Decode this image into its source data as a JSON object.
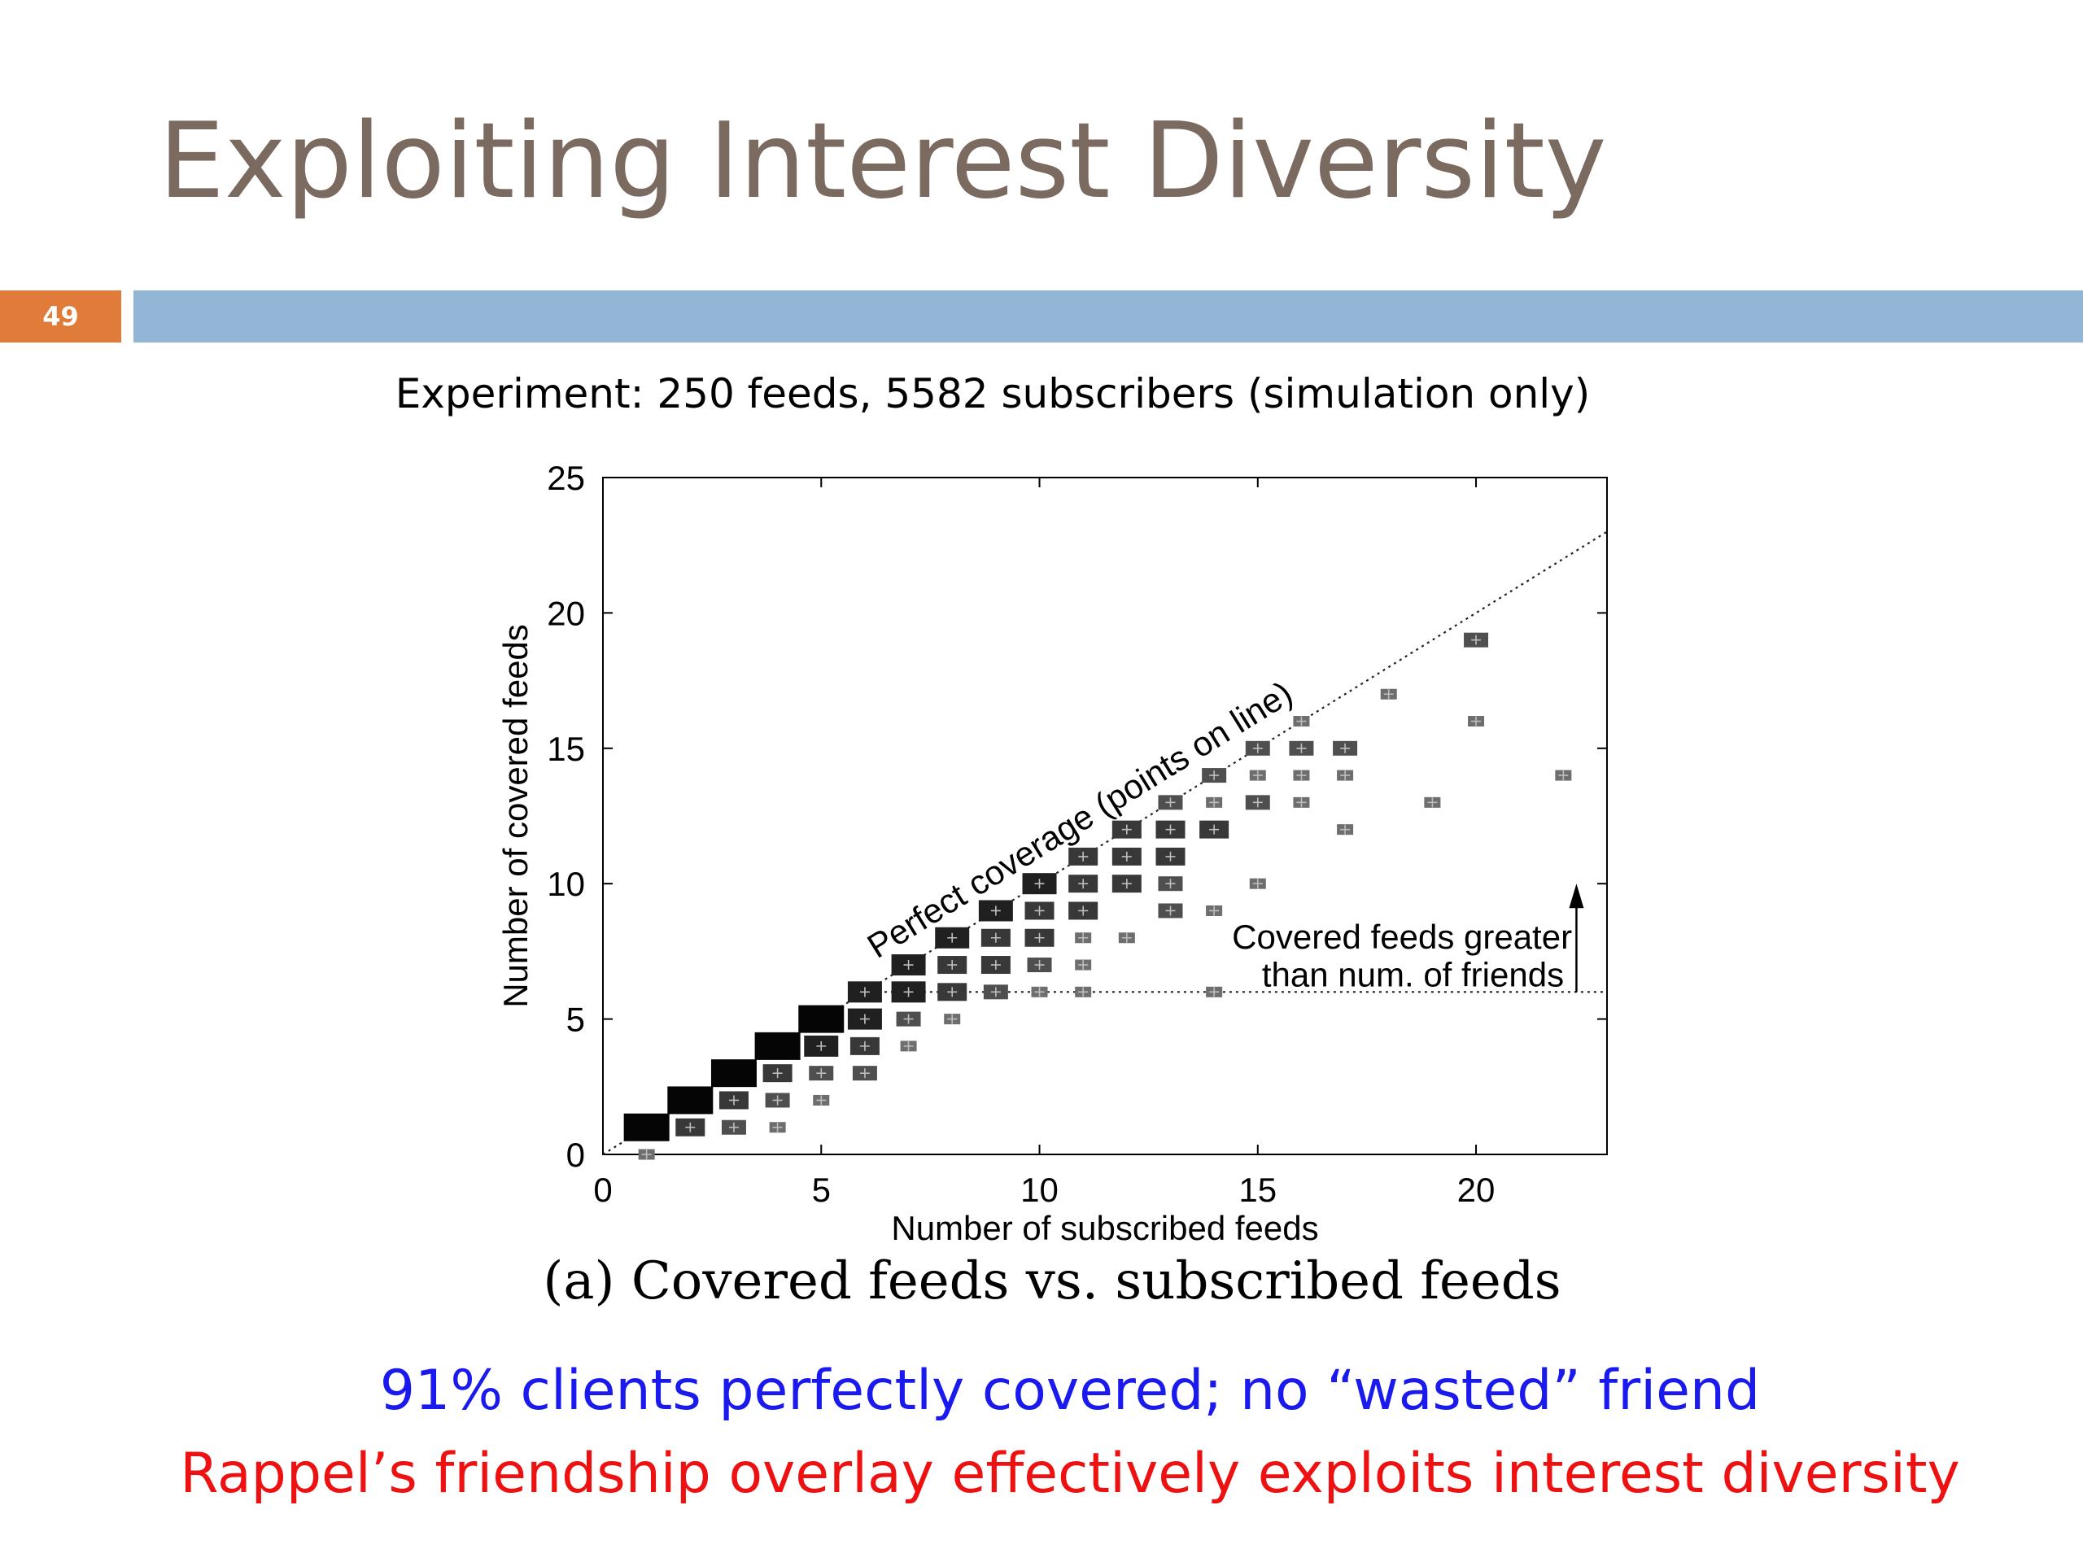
{
  "slide": {
    "title": "Exploiting Interest Diversity",
    "number": "49",
    "experiment": "Experiment: 250 feeds, 5582 subscribers (simulation only)",
    "caption": "(a)  Covered feeds vs. subscribed feeds",
    "bullets": [
      "91% clients perfectly covered; no “wasted” friend",
      "Rappel’s friendship overlay effectively exploits interest diversity"
    ]
  },
  "colors": {
    "title": "#7b6a60",
    "slide_number_bg": "#e07b39",
    "title_bar": "#93b6d6",
    "bullet_blue": "#1a1aee",
    "bullet_red": "#ee1111"
  },
  "chart_data": {
    "type": "scatter",
    "title": "",
    "xlabel": "Number of subscribed feeds",
    "ylabel": "Number of covered feeds",
    "xlim": [
      0,
      23
    ],
    "ylim": [
      0,
      25
    ],
    "xticks": [
      0,
      5,
      10,
      15,
      20
    ],
    "yticks": [
      0,
      5,
      10,
      15,
      20,
      25
    ],
    "grid": false,
    "annotations": {
      "perfect_line": "Perfect coverage (points on line)",
      "greater_1": "Covered feeds greater",
      "greater_2": "than num. of friends"
    },
    "reference_lines": [
      {
        "from": [
          0,
          0
        ],
        "to": [
          23,
          23
        ],
        "style": "dotted"
      },
      {
        "from": [
          6,
          6
        ],
        "to": [
          23,
          6
        ],
        "style": "dotted"
      }
    ],
    "points": [
      {
        "x": 1,
        "y": 1,
        "s": 5
      },
      {
        "x": 1,
        "y": 0,
        "s": 1
      },
      {
        "x": 2,
        "y": 2,
        "s": 5
      },
      {
        "x": 2,
        "y": 1,
        "s": 3
      },
      {
        "x": 3,
        "y": 3,
        "s": 5
      },
      {
        "x": 3,
        "y": 2,
        "s": 3
      },
      {
        "x": 3,
        "y": 1,
        "s": 2
      },
      {
        "x": 4,
        "y": 4,
        "s": 5
      },
      {
        "x": 4,
        "y": 3,
        "s": 3
      },
      {
        "x": 4,
        "y": 2,
        "s": 2
      },
      {
        "x": 4,
        "y": 1,
        "s": 1
      },
      {
        "x": 5,
        "y": 5,
        "s": 5
      },
      {
        "x": 5,
        "y": 4,
        "s": 4
      },
      {
        "x": 5,
        "y": 3,
        "s": 2
      },
      {
        "x": 5,
        "y": 2,
        "s": 1
      },
      {
        "x": 6,
        "y": 6,
        "s": 4
      },
      {
        "x": 6,
        "y": 5,
        "s": 4
      },
      {
        "x": 6,
        "y": 4,
        "s": 3
      },
      {
        "x": 6,
        "y": 3,
        "s": 2
      },
      {
        "x": 7,
        "y": 7,
        "s": 4
      },
      {
        "x": 7,
        "y": 6,
        "s": 4
      },
      {
        "x": 7,
        "y": 5,
        "s": 2
      },
      {
        "x": 7,
        "y": 4,
        "s": 1
      },
      {
        "x": 8,
        "y": 8,
        "s": 4
      },
      {
        "x": 8,
        "y": 7,
        "s": 3
      },
      {
        "x": 8,
        "y": 6,
        "s": 3
      },
      {
        "x": 8,
        "y": 5,
        "s": 1
      },
      {
        "x": 9,
        "y": 9,
        "s": 4
      },
      {
        "x": 9,
        "y": 8,
        "s": 3
      },
      {
        "x": 9,
        "y": 7,
        "s": 3
      },
      {
        "x": 9,
        "y": 6,
        "s": 2
      },
      {
        "x": 10,
        "y": 10,
        "s": 4
      },
      {
        "x": 10,
        "y": 9,
        "s": 3
      },
      {
        "x": 10,
        "y": 8,
        "s": 3
      },
      {
        "x": 10,
        "y": 7,
        "s": 2
      },
      {
        "x": 10,
        "y": 6,
        "s": 1
      },
      {
        "x": 11,
        "y": 11,
        "s": 3
      },
      {
        "x": 11,
        "y": 10,
        "s": 3
      },
      {
        "x": 11,
        "y": 9,
        "s": 3
      },
      {
        "x": 11,
        "y": 8,
        "s": 1
      },
      {
        "x": 11,
        "y": 7,
        "s": 1
      },
      {
        "x": 11,
        "y": 6,
        "s": 1
      },
      {
        "x": 12,
        "y": 12,
        "s": 3
      },
      {
        "x": 12,
        "y": 11,
        "s": 3
      },
      {
        "x": 12,
        "y": 10,
        "s": 3
      },
      {
        "x": 12,
        "y": 8,
        "s": 1
      },
      {
        "x": 13,
        "y": 13,
        "s": 2
      },
      {
        "x": 13,
        "y": 12,
        "s": 3
      },
      {
        "x": 13,
        "y": 11,
        "s": 3
      },
      {
        "x": 13,
        "y": 10,
        "s": 2
      },
      {
        "x": 13,
        "y": 9,
        "s": 2
      },
      {
        "x": 14,
        "y": 14,
        "s": 2
      },
      {
        "x": 14,
        "y": 13,
        "s": 1
      },
      {
        "x": 14,
        "y": 12,
        "s": 3
      },
      {
        "x": 14,
        "y": 9,
        "s": 1
      },
      {
        "x": 14,
        "y": 6,
        "s": 1
      },
      {
        "x": 15,
        "y": 15,
        "s": 2
      },
      {
        "x": 15,
        "y": 14,
        "s": 1
      },
      {
        "x": 15,
        "y": 13,
        "s": 2
      },
      {
        "x": 15,
        "y": 10,
        "s": 1
      },
      {
        "x": 16,
        "y": 16,
        "s": 1
      },
      {
        "x": 16,
        "y": 15,
        "s": 2
      },
      {
        "x": 16,
        "y": 14,
        "s": 1
      },
      {
        "x": 16,
        "y": 13,
        "s": 1
      },
      {
        "x": 17,
        "y": 15,
        "s": 2
      },
      {
        "x": 17,
        "y": 14,
        "s": 1
      },
      {
        "x": 17,
        "y": 12,
        "s": 1
      },
      {
        "x": 18,
        "y": 17,
        "s": 1
      },
      {
        "x": 19,
        "y": 13,
        "s": 1
      },
      {
        "x": 20,
        "y": 19,
        "s": 2
      },
      {
        "x": 20,
        "y": 16,
        "s": 1
      },
      {
        "x": 22,
        "y": 14,
        "s": 1
      }
    ]
  }
}
